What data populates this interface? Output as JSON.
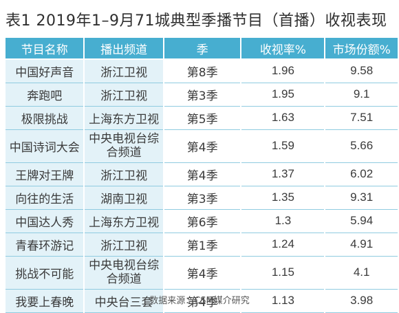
{
  "title": "表1  2019年1–9月71城典型季播节目（首播）收视表现",
  "table": {
    "headers": [
      "节目名称",
      "播出频道",
      "季",
      "收视率%",
      "市场份额%"
    ],
    "rows": [
      {
        "name": "中国好声音",
        "channel": "浙江卫视",
        "season": "第8季",
        "rating": "1.96",
        "share": "9.58"
      },
      {
        "name": "奔跑吧",
        "channel": "浙江卫视",
        "season": "第3季",
        "rating": "1.95",
        "share": "9.1"
      },
      {
        "name": "极限挑战",
        "channel": "上海东方卫视",
        "season": "第5季",
        "rating": "1.63",
        "share": "7.51"
      },
      {
        "name": "中国诗词大会",
        "channel": "中央电视台综合频道",
        "season": "第4季",
        "rating": "1.59",
        "share": "5.66"
      },
      {
        "name": "王牌对王牌",
        "channel": "浙江卫视",
        "season": "第4季",
        "rating": "1.37",
        "share": "6.02"
      },
      {
        "name": "向往的生活",
        "channel": "湖南卫视",
        "season": "第3季",
        "rating": "1.35",
        "share": "9.31"
      },
      {
        "name": "中国达人秀",
        "channel": "上海东方卫视",
        "season": "第6季",
        "rating": "1.3",
        "share": "5.94"
      },
      {
        "name": "青春环游记",
        "channel": "浙江卫视",
        "season": "第1季",
        "rating": "1.24",
        "share": "4.91"
      },
      {
        "name": "挑战不可能",
        "channel": "中央电视台综合频道",
        "season": "第4季",
        "rating": "1.15",
        "share": "4.1"
      },
      {
        "name": "我要上春晚",
        "channel": "中央台三套",
        "season": "第4季",
        "rating": "1.13",
        "share": "3.98"
      }
    ]
  },
  "source": "数据来源：CSM媒介研究"
}
